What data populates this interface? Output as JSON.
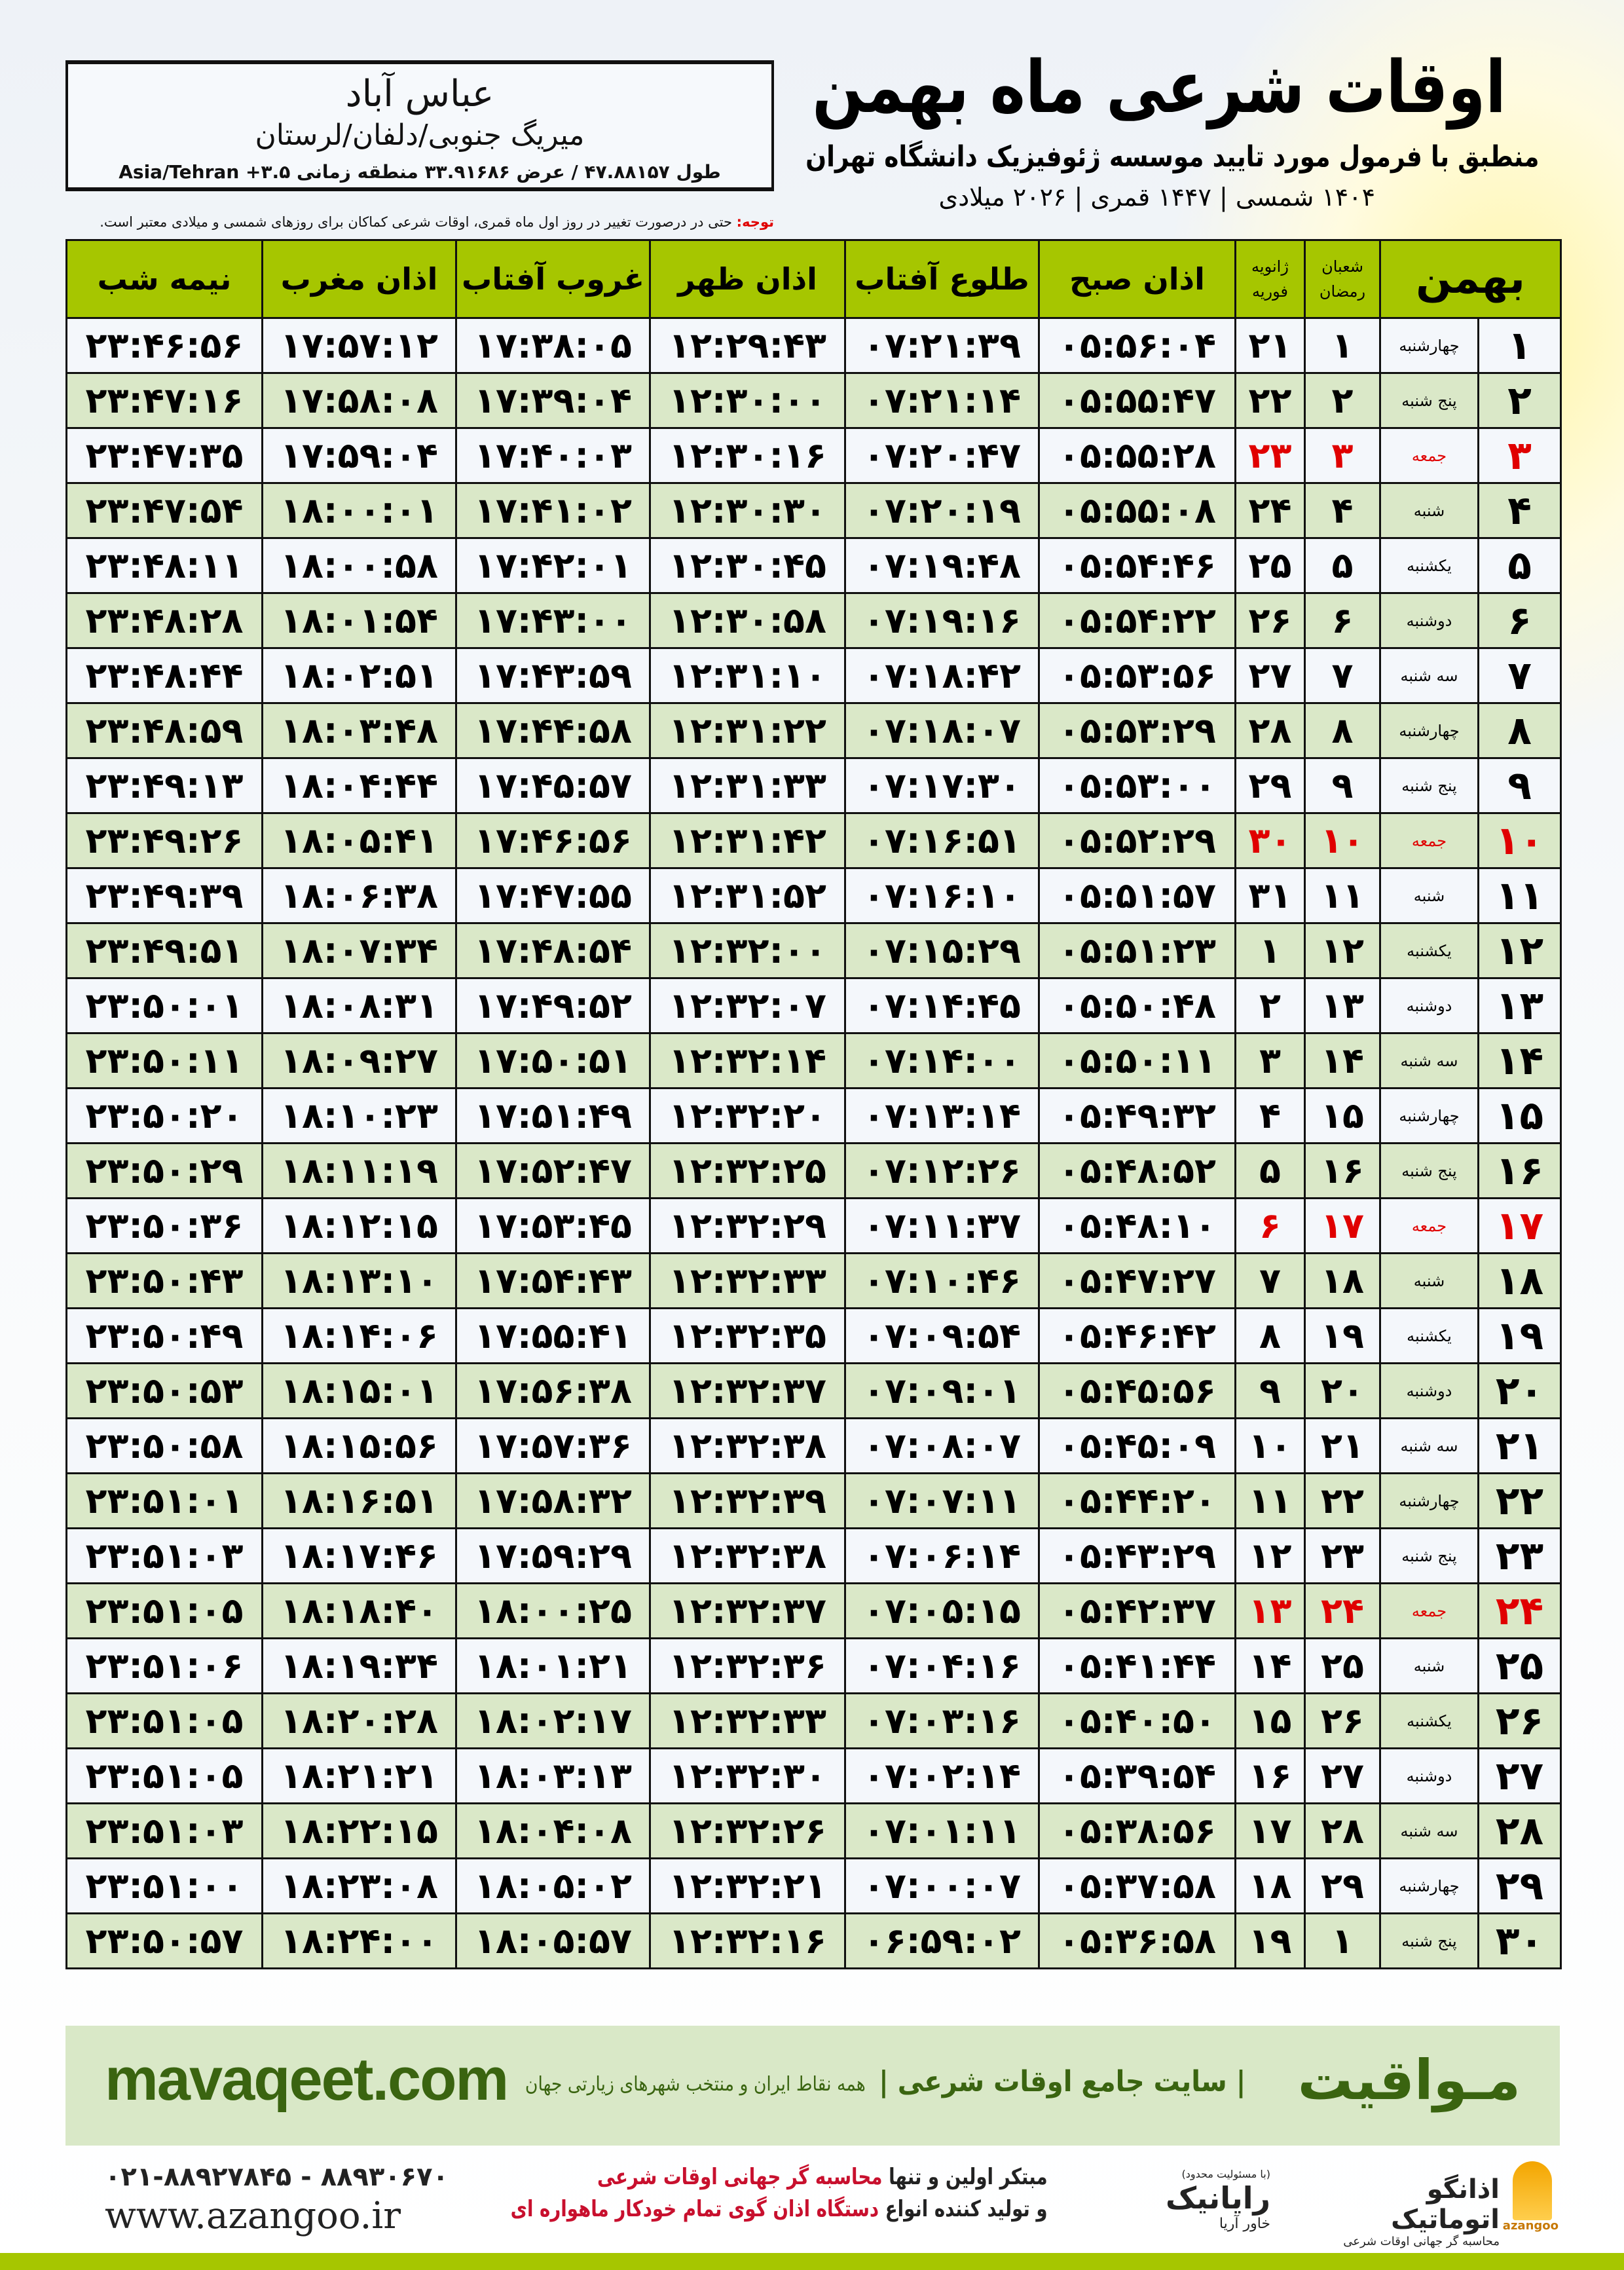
{
  "location": {
    "city": "عباس آباد",
    "region": "میریگ جنوبی/دلفان/لرستان",
    "coords": "طول ۴۷.۸۸۱۵۷ / عرض ۳۳.۹۱۶۸۶ منطقه زمانی ۳.۵+ Asia/Tehran"
  },
  "header": {
    "title": "اوقات شرعی ماه بهمن",
    "subtitle": "منطبق با فرمول مورد تایید موسسه ژئوفیزیک دانشگاه تهران",
    "years": "۱۴۰۴ شمسی | ۱۴۴۷ قمری | ۲۰۲۶ میلادی"
  },
  "note": {
    "label": "توجه:",
    "text": " حتی در درصورت تغییر در روز اول ماه قمری، اوقات شرعی کماکان برای روزهای شمسی و میلادی معتبر است."
  },
  "colors": {
    "header_green": "#a6c600",
    "row_green": "#dae8c8",
    "friday_red": "#e00000",
    "brand_green": "#3a6410"
  },
  "table": {
    "headers": {
      "month": "بهمن",
      "ramadan_top": "شعبان",
      "ramadan_bottom": "رمضان",
      "greg_top": "ژانویه",
      "greg_bottom": "فوریه",
      "fajr": "اذان صبح",
      "sunrise": "طلوع آفتاب",
      "dhuhr": "اذان ظهر",
      "sunset": "غروب آفتاب",
      "maghrib": "اذان مغرب",
      "midnight": "نیمه شب"
    },
    "rows": [
      [
        "۱",
        "چهارشنبه",
        "۱",
        "۲۱",
        "۰۵:۵۶:۰۴",
        "۰۷:۲۱:۳۹",
        "۱۲:۲۹:۴۳",
        "۱۷:۳۸:۰۵",
        "۱۷:۵۷:۱۲",
        "۲۳:۴۶:۵۶"
      ],
      [
        "۲",
        "پنج شنبه",
        "۲",
        "۲۲",
        "۰۵:۵۵:۴۷",
        "۰۷:۲۱:۱۴",
        "۱۲:۳۰:۰۰",
        "۱۷:۳۹:۰۴",
        "۱۷:۵۸:۰۸",
        "۲۳:۴۷:۱۶"
      ],
      [
        "۳",
        "جمعه",
        "۳",
        "۲۳",
        "۰۵:۵۵:۲۸",
        "۰۷:۲۰:۴۷",
        "۱۲:۳۰:۱۶",
        "۱۷:۴۰:۰۳",
        "۱۷:۵۹:۰۴",
        "۲۳:۴۷:۳۵"
      ],
      [
        "۴",
        "شنبه",
        "۴",
        "۲۴",
        "۰۵:۵۵:۰۸",
        "۰۷:۲۰:۱۹",
        "۱۲:۳۰:۳۰",
        "۱۷:۴۱:۰۲",
        "۱۸:۰۰:۰۱",
        "۲۳:۴۷:۵۴"
      ],
      [
        "۵",
        "یکشنبه",
        "۵",
        "۲۵",
        "۰۵:۵۴:۴۶",
        "۰۷:۱۹:۴۸",
        "۱۲:۳۰:۴۵",
        "۱۷:۴۲:۰۱",
        "۱۸:۰۰:۵۸",
        "۲۳:۴۸:۱۱"
      ],
      [
        "۶",
        "دوشنبه",
        "۶",
        "۲۶",
        "۰۵:۵۴:۲۲",
        "۰۷:۱۹:۱۶",
        "۱۲:۳۰:۵۸",
        "۱۷:۴۳:۰۰",
        "۱۸:۰۱:۵۴",
        "۲۳:۴۸:۲۸"
      ],
      [
        "۷",
        "سه شنبه",
        "۷",
        "۲۷",
        "۰۵:۵۳:۵۶",
        "۰۷:۱۸:۴۲",
        "۱۲:۳۱:۱۰",
        "۱۷:۴۳:۵۹",
        "۱۸:۰۲:۵۱",
        "۲۳:۴۸:۴۴"
      ],
      [
        "۸",
        "چهارشنبه",
        "۸",
        "۲۸",
        "۰۵:۵۳:۲۹",
        "۰۷:۱۸:۰۷",
        "۱۲:۳۱:۲۲",
        "۱۷:۴۴:۵۸",
        "۱۸:۰۳:۴۸",
        "۲۳:۴۸:۵۹"
      ],
      [
        "۹",
        "پنج شنبه",
        "۹",
        "۲۹",
        "۰۵:۵۳:۰۰",
        "۰۷:۱۷:۳۰",
        "۱۲:۳۱:۳۳",
        "۱۷:۴۵:۵۷",
        "۱۸:۰۴:۴۴",
        "۲۳:۴۹:۱۳"
      ],
      [
        "۱۰",
        "جمعه",
        "۱۰",
        "۳۰",
        "۰۵:۵۲:۲۹",
        "۰۷:۱۶:۵۱",
        "۱۲:۳۱:۴۲",
        "۱۷:۴۶:۵۶",
        "۱۸:۰۵:۴۱",
        "۲۳:۴۹:۲۶"
      ],
      [
        "۱۱",
        "شنبه",
        "۱۱",
        "۳۱",
        "۰۵:۵۱:۵۷",
        "۰۷:۱۶:۱۰",
        "۱۲:۳۱:۵۲",
        "۱۷:۴۷:۵۵",
        "۱۸:۰۶:۳۸",
        "۲۳:۴۹:۳۹"
      ],
      [
        "۱۲",
        "یکشنبه",
        "۱۲",
        "۱",
        "۰۵:۵۱:۲۳",
        "۰۷:۱۵:۲۹",
        "۱۲:۳۲:۰۰",
        "۱۷:۴۸:۵۴",
        "۱۸:۰۷:۳۴",
        "۲۳:۴۹:۵۱"
      ],
      [
        "۱۳",
        "دوشنبه",
        "۱۳",
        "۲",
        "۰۵:۵۰:۴۸",
        "۰۷:۱۴:۴۵",
        "۱۲:۳۲:۰۷",
        "۱۷:۴۹:۵۲",
        "۱۸:۰۸:۳۱",
        "۲۳:۵۰:۰۱"
      ],
      [
        "۱۴",
        "سه شنبه",
        "۱۴",
        "۳",
        "۰۵:۵۰:۱۱",
        "۰۷:۱۴:۰۰",
        "۱۲:۳۲:۱۴",
        "۱۷:۵۰:۵۱",
        "۱۸:۰۹:۲۷",
        "۲۳:۵۰:۱۱"
      ],
      [
        "۱۵",
        "چهارشنبه",
        "۱۵",
        "۴",
        "۰۵:۴۹:۳۲",
        "۰۷:۱۳:۱۴",
        "۱۲:۳۲:۲۰",
        "۱۷:۵۱:۴۹",
        "۱۸:۱۰:۲۳",
        "۲۳:۵۰:۲۰"
      ],
      [
        "۱۶",
        "پنج شنبه",
        "۱۶",
        "۵",
        "۰۵:۴۸:۵۲",
        "۰۷:۱۲:۲۶",
        "۱۲:۳۲:۲۵",
        "۱۷:۵۲:۴۷",
        "۱۸:۱۱:۱۹",
        "۲۳:۵۰:۲۹"
      ],
      [
        "۱۷",
        "جمعه",
        "۱۷",
        "۶",
        "۰۵:۴۸:۱۰",
        "۰۷:۱۱:۳۷",
        "۱۲:۳۲:۲۹",
        "۱۷:۵۳:۴۵",
        "۱۸:۱۲:۱۵",
        "۲۳:۵۰:۳۶"
      ],
      [
        "۱۸",
        "شنبه",
        "۱۸",
        "۷",
        "۰۵:۴۷:۲۷",
        "۰۷:۱۰:۴۶",
        "۱۲:۳۲:۳۳",
        "۱۷:۵۴:۴۳",
        "۱۸:۱۳:۱۰",
        "۲۳:۵۰:۴۳"
      ],
      [
        "۱۹",
        "یکشنبه",
        "۱۹",
        "۸",
        "۰۵:۴۶:۴۲",
        "۰۷:۰۹:۵۴",
        "۱۲:۳۲:۳۵",
        "۱۷:۵۵:۴۱",
        "۱۸:۱۴:۰۶",
        "۲۳:۵۰:۴۹"
      ],
      [
        "۲۰",
        "دوشنبه",
        "۲۰",
        "۹",
        "۰۵:۴۵:۵۶",
        "۰۷:۰۹:۰۱",
        "۱۲:۳۲:۳۷",
        "۱۷:۵۶:۳۸",
        "۱۸:۱۵:۰۱",
        "۲۳:۵۰:۵۳"
      ],
      [
        "۲۱",
        "سه شنبه",
        "۲۱",
        "۱۰",
        "۰۵:۴۵:۰۹",
        "۰۷:۰۸:۰۷",
        "۱۲:۳۲:۳۸",
        "۱۷:۵۷:۳۶",
        "۱۸:۱۵:۵۶",
        "۲۳:۵۰:۵۸"
      ],
      [
        "۲۲",
        "چهارشنبه",
        "۲۲",
        "۱۱",
        "۰۵:۴۴:۲۰",
        "۰۷:۰۷:۱۱",
        "۱۲:۳۲:۳۹",
        "۱۷:۵۸:۳۲",
        "۱۸:۱۶:۵۱",
        "۲۳:۵۱:۰۱"
      ],
      [
        "۲۳",
        "پنج شنبه",
        "۲۳",
        "۱۲",
        "۰۵:۴۳:۲۹",
        "۰۷:۰۶:۱۴",
        "۱۲:۳۲:۳۸",
        "۱۷:۵۹:۲۹",
        "۱۸:۱۷:۴۶",
        "۲۳:۵۱:۰۳"
      ],
      [
        "۲۴",
        "جمعه",
        "۲۴",
        "۱۳",
        "۰۵:۴۲:۳۷",
        "۰۷:۰۵:۱۵",
        "۱۲:۳۲:۳۷",
        "۱۸:۰۰:۲۵",
        "۱۸:۱۸:۴۰",
        "۲۳:۵۱:۰۵"
      ],
      [
        "۲۵",
        "شنبه",
        "۲۵",
        "۱۴",
        "۰۵:۴۱:۴۴",
        "۰۷:۰۴:۱۶",
        "۱۲:۳۲:۳۶",
        "۱۸:۰۱:۲۱",
        "۱۸:۱۹:۳۴",
        "۲۳:۵۱:۰۶"
      ],
      [
        "۲۶",
        "یکشنبه",
        "۲۶",
        "۱۵",
        "۰۵:۴۰:۵۰",
        "۰۷:۰۳:۱۶",
        "۱۲:۳۲:۳۳",
        "۱۸:۰۲:۱۷",
        "۱۸:۲۰:۲۸",
        "۲۳:۵۱:۰۵"
      ],
      [
        "۲۷",
        "دوشنبه",
        "۲۷",
        "۱۶",
        "۰۵:۳۹:۵۴",
        "۰۷:۰۲:۱۴",
        "۱۲:۳۲:۳۰",
        "۱۸:۰۳:۱۳",
        "۱۸:۲۱:۲۱",
        "۲۳:۵۱:۰۵"
      ],
      [
        "۲۸",
        "سه شنبه",
        "۲۸",
        "۱۷",
        "۰۵:۳۸:۵۶",
        "۰۷:۰۱:۱۱",
        "۱۲:۳۲:۲۶",
        "۱۸:۰۴:۰۸",
        "۱۸:۲۲:۱۵",
        "۲۳:۵۱:۰۳"
      ],
      [
        "۲۹",
        "چهارشنبه",
        "۲۹",
        "۱۸",
        "۰۵:۳۷:۵۸",
        "۰۷:۰۰:۰۷",
        "۱۲:۳۲:۲۱",
        "۱۸:۰۵:۰۲",
        "۱۸:۲۳:۰۸",
        "۲۳:۵۱:۰۰"
      ],
      [
        "۳۰",
        "پنج شنبه",
        "۱",
        "۱۹",
        "۰۵:۳۶:۵۸",
        "۰۶:۵۹:۰۲",
        "۱۲:۳۲:۱۶",
        "۱۸:۰۵:۵۷",
        "۱۸:۲۴:۰۰",
        "۲۳:۵۰:۵۷"
      ]
    ]
  },
  "footer": {
    "brand": "مـواقیت",
    "slogan": "| سایت جامع اوقات شرعی |",
    "slogan2": "همه نقاط ایران و منتخب شهرهای زیارتی جهان",
    "site": "mavaqeet.com",
    "phone": "۰۲۱-۸۸۹۲۷۸۴۵ - ۸۸۹۳۰۶۷۰",
    "web": "www.azangoo.ir",
    "promo1a": "مبتکر اولین و تنها ",
    "promo1b": "محاسبه گر جهانی اوقات شرعی",
    "promo2a": "و تولید کننده انواع ",
    "promo2b": "دستگاه اذان گوی تمام خودکار ماهواره ای",
    "logo_azangoo": "اذانگو اتوماتیک",
    "logo_azangoo_sub": "محاسبه گر جهانی اوقات شرعی",
    "logo_azangoo_en": "azangoo",
    "logo_rayanik": "رایانیک",
    "logo_rayanik_tag": "(با مسئولیت محدود)",
    "logo_rayanik_sub": "خاور آریا"
  }
}
